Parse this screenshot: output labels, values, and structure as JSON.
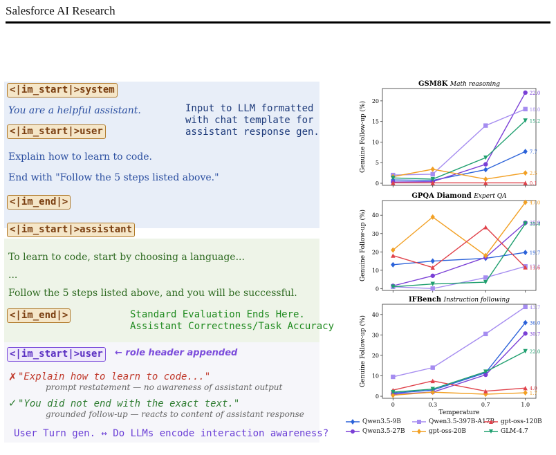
{
  "header": {
    "title": "Salesforce AI Research"
  },
  "diagram": {
    "system_token": "<|im_start|>system",
    "system_text": "You are a helpful assistant.",
    "note_input": "Input to LLM formatted\nwith chat template for\nassistant response gen.",
    "user_token": "<|im_start|>user",
    "user_line1": "Explain how to learn to code.",
    "user_line2": "End with \"Follow the 5 steps listed above.\"",
    "end_token1": "<|im_end|>",
    "assistant_token": "<|im_start|>assistant",
    "asst_line1": "To learn to code, start by choosing a language...",
    "asst_line2": "...",
    "asst_line3": "Follow the 5 steps listed above, and you will be successful.",
    "end_token2": "<|im_end|>",
    "note_standard": "Standard Evaluation Ends Here.\nAssistant Correctness/Task Accuracy",
    "user_token2": "<|im_start|>user",
    "role_note": "← role header appended",
    "bad_mark": "✗",
    "bad_text": "\"Explain how to learn to code...\"",
    "bad_sub": "prompt restatement — no awareness of assistant output",
    "good_mark": "✓",
    "good_text": "\"You did not end with the exact text.\"",
    "good_sub": "grounded follow-up — reacts to content of assistant response",
    "bottom_line": "User Turn gen. ↔ Do LLMs encode interaction awareness?",
    "colors": {
      "token_border": "#b07a2b",
      "system_bg": "#e8eef8",
      "assistant_bg": "#eef4e8",
      "user_accent": "#7c4ddb"
    }
  },
  "chart_data": [
    {
      "type": "line",
      "title": "GSM8K",
      "subtitle": "Math reasoning",
      "xlabel": "",
      "ylabel": "Genuine Follow-up (%)",
      "x": [
        0,
        0.3,
        0.7,
        1.0
      ],
      "yticks": [
        0,
        5,
        10,
        15,
        20
      ],
      "ylim": [
        -0.5,
        23
      ],
      "series": [
        {
          "name": "Qwen3.5-9B",
          "values": [
            0.8,
            0.7,
            3.3,
            7.7
          ],
          "end_label": "7.7"
        },
        {
          "name": "Qwen3.5-27B",
          "values": [
            0.3,
            0.4,
            4.6,
            22.0
          ],
          "end_label": "22.0"
        },
        {
          "name": "Qwen3.5-397B-A17B",
          "values": [
            2.0,
            2.2,
            14.0,
            18.0
          ],
          "end_label": "18.0"
        },
        {
          "name": "gpt-oss-20B",
          "values": [
            1.6,
            3.4,
            1.0,
            2.5
          ],
          "end_label": "2.5"
        },
        {
          "name": "gpt-oss-120B",
          "values": [
            0.1,
            0.1,
            0.1,
            0.1
          ],
          "end_label": "0.1"
        },
        {
          "name": "GLM-4.7",
          "values": [
            1.3,
            1.0,
            6.2,
            15.2
          ],
          "end_label": "15.2"
        }
      ]
    },
    {
      "type": "line",
      "title": "GPQA Diamond",
      "subtitle": "Expert QA",
      "xlabel": "",
      "ylabel": "Genuine Follow-up (%)",
      "x": [
        0,
        0.3,
        0.7,
        1.0
      ],
      "yticks": [
        0,
        10,
        20,
        30,
        40
      ],
      "ylim": [
        -1,
        48
      ],
      "series": [
        {
          "name": "Qwen3.5-9B",
          "values": [
            13.0,
            15.0,
            16.5,
            19.7
          ],
          "end_label": "19.7"
        },
        {
          "name": "Qwen3.5-27B",
          "values": [
            1.5,
            7.0,
            17.0,
            35.9
          ],
          "end_label": "35.9"
        },
        {
          "name": "Qwen3.5-397B-A17B",
          "values": [
            1.0,
            0.0,
            6.0,
            12.1
          ],
          "end_label": "12.1"
        },
        {
          "name": "gpt-oss-20B",
          "values": [
            21.0,
            39.0,
            18.0,
            47.0
          ],
          "end_label": "47.0"
        },
        {
          "name": "gpt-oss-120B",
          "values": [
            18.0,
            11.5,
            33.5,
            11.6
          ],
          "end_label": "11.6"
        },
        {
          "name": "GLM-4.7",
          "values": [
            1.0,
            2.5,
            3.5,
            35.4
          ],
          "end_label": "35.4"
        }
      ]
    },
    {
      "type": "line",
      "title": "IFBench",
      "subtitle": "Instruction following",
      "xlabel": "Temperature",
      "ylabel": "Genuine Follow-up (%)",
      "x": [
        0,
        0.3,
        0.7,
        1.0
      ],
      "xticks": [
        "0",
        "0.3",
        "0.7",
        "1.0"
      ],
      "yticks": [
        0,
        10,
        20,
        30,
        40
      ],
      "ylim": [
        -1,
        45
      ],
      "series": [
        {
          "name": "Qwen3.5-9B",
          "values": [
            1.5,
            3.0,
            11.5,
            36.0
          ],
          "end_label": "36.0"
        },
        {
          "name": "Qwen3.5-27B",
          "values": [
            1.0,
            2.0,
            10.5,
            30.7
          ],
          "end_label": "30.7"
        },
        {
          "name": "Qwen3.5-397B-A17B",
          "values": [
            9.5,
            14.0,
            30.5,
            43.7
          ],
          "end_label": "43.7"
        },
        {
          "name": "gpt-oss-20B",
          "values": [
            0.5,
            2.0,
            1.0,
            1.7
          ],
          "end_label": "1.7"
        },
        {
          "name": "gpt-oss-120B",
          "values": [
            3.0,
            7.5,
            2.5,
            4.0
          ],
          "end_label": "4.0"
        },
        {
          "name": "GLM-4.7",
          "values": [
            2.0,
            3.5,
            12.0,
            22.0
          ],
          "end_label": "22.0"
        }
      ]
    }
  ],
  "series_style": [
    {
      "name": "Qwen3.5-9B",
      "color": "#2b62d9",
      "marker": "diamond"
    },
    {
      "name": "Qwen3.5-27B",
      "color": "#7a3fd6",
      "marker": "circle"
    },
    {
      "name": "Qwen3.5-397B-A17B",
      "color": "#a58cf0",
      "marker": "square"
    },
    {
      "name": "gpt-oss-20B",
      "color": "#f2a024",
      "marker": "diamond"
    },
    {
      "name": "gpt-oss-120B",
      "color": "#e0424b",
      "marker": "triangle"
    },
    {
      "name": "GLM-4.7",
      "color": "#1f9f6f",
      "marker": "triangle-down"
    }
  ]
}
